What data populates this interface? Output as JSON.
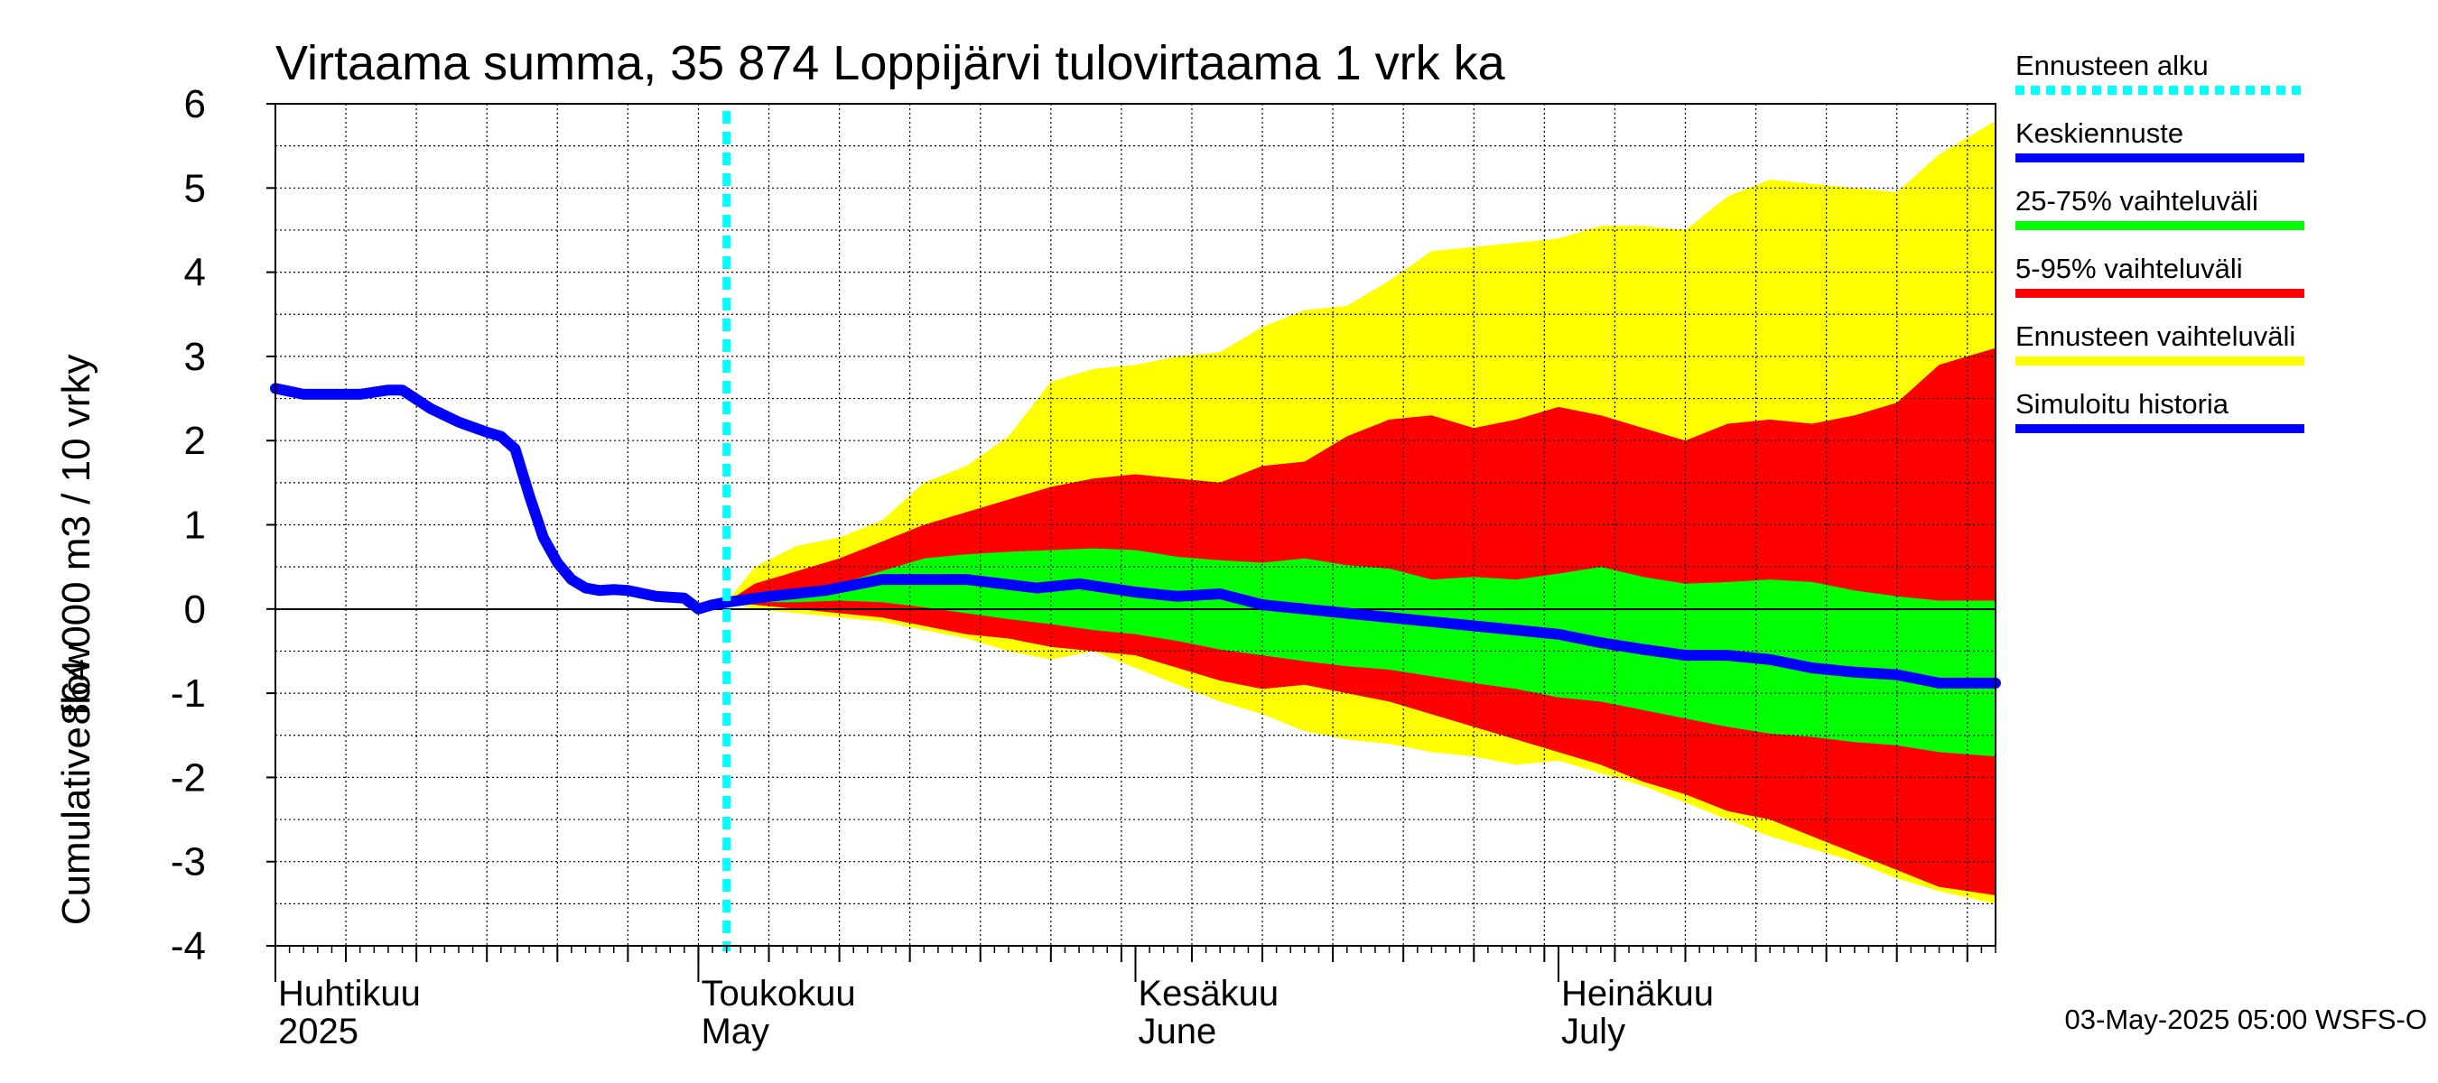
{
  "chart_data": {
    "type": "area",
    "title": "Virtaama summa, 35 874 Loppijärvi tulovirtaama 1 vrk ka",
    "ylabel_fi": "864 000 m3 / 10 vrky",
    "ylabel_en": "Cumulative flow",
    "ylim": [
      -4,
      6
    ],
    "yticks": [
      -4,
      -3,
      -2,
      -1,
      0,
      1,
      2,
      3,
      4,
      5,
      6
    ],
    "ytick_labels": [
      "-4",
      "-3",
      "-2",
      "-1",
      "0",
      "1",
      "2",
      "3",
      "4",
      "5",
      "6"
    ],
    "x_range": [
      "2025-04-01",
      "2025-08-01"
    ],
    "grid": true,
    "legend_position": "right",
    "months": [
      {
        "fi": "Huhtikuu",
        "en": "2025",
        "date": "2025-04-01"
      },
      {
        "fi": "Toukokuu",
        "en": "May",
        "date": "2025-05-01"
      },
      {
        "fi": "Kesäkuu",
        "en": "June",
        "date": "2025-06-01"
      },
      {
        "fi": "Heinäkuu",
        "en": "July",
        "date": "2025-07-01"
      }
    ],
    "forecast_start": "2025-05-03",
    "history": {
      "name": "Simuloitu historia",
      "color": "#0000ff",
      "x": [
        "2025-04-01",
        "2025-04-03",
        "2025-04-05",
        "2025-04-07",
        "2025-04-09",
        "2025-04-10",
        "2025-04-12",
        "2025-04-14",
        "2025-04-16",
        "2025-04-17",
        "2025-04-18",
        "2025-04-19",
        "2025-04-20",
        "2025-04-21",
        "2025-04-22",
        "2025-04-23",
        "2025-04-24",
        "2025-04-25",
        "2025-04-26",
        "2025-04-28",
        "2025-04-30",
        "2025-05-01",
        "2025-05-02",
        "2025-05-03"
      ],
      "y": [
        2.62,
        2.55,
        2.55,
        2.55,
        2.6,
        2.6,
        2.38,
        2.22,
        2.1,
        2.05,
        1.9,
        1.35,
        0.85,
        0.55,
        0.35,
        0.25,
        0.22,
        0.23,
        0.22,
        0.15,
        0.13,
        0.0,
        0.05,
        0.08
      ]
    },
    "median": {
      "name": "Keskiennuste",
      "color": "#0000ff",
      "x": [
        "2025-05-03",
        "2025-05-06",
        "2025-05-10",
        "2025-05-14",
        "2025-05-17",
        "2025-05-20",
        "2025-05-25",
        "2025-05-28",
        "2025-06-01",
        "2025-06-04",
        "2025-06-07",
        "2025-06-10",
        "2025-06-13",
        "2025-06-16",
        "2025-06-19",
        "2025-06-22",
        "2025-06-25",
        "2025-06-28",
        "2025-07-01",
        "2025-07-04",
        "2025-07-07",
        "2025-07-10",
        "2025-07-13",
        "2025-07-16",
        "2025-07-19",
        "2025-07-22",
        "2025-07-25",
        "2025-07-28",
        "2025-08-01"
      ],
      "y": [
        0.08,
        0.15,
        0.22,
        0.35,
        0.35,
        0.35,
        0.25,
        0.3,
        0.2,
        0.15,
        0.18,
        0.05,
        0.0,
        -0.05,
        -0.1,
        -0.15,
        -0.2,
        -0.25,
        -0.3,
        -0.4,
        -0.48,
        -0.55,
        -0.55,
        -0.6,
        -0.7,
        -0.75,
        -0.78,
        -0.88,
        -0.88
      ]
    },
    "bands": [
      {
        "name": "Ennusteen vaihteluväli",
        "color": "#ffff00",
        "x": [
          "2025-05-03",
          "2025-05-05",
          "2025-05-08",
          "2025-05-11",
          "2025-05-14",
          "2025-05-17",
          "2025-05-20",
          "2025-05-23",
          "2025-05-26",
          "2025-05-29",
          "2025-06-01",
          "2025-06-04",
          "2025-06-07",
          "2025-06-10",
          "2025-06-13",
          "2025-06-16",
          "2025-06-19",
          "2025-06-22",
          "2025-06-25",
          "2025-06-28",
          "2025-07-01",
          "2025-07-04",
          "2025-07-07",
          "2025-07-10",
          "2025-07-13",
          "2025-07-16",
          "2025-07-19",
          "2025-07-22",
          "2025-07-25",
          "2025-07-28",
          "2025-08-01"
        ],
        "upper": [
          0.08,
          0.5,
          0.75,
          0.85,
          1.05,
          1.5,
          1.7,
          2.05,
          2.7,
          2.85,
          2.9,
          3.0,
          3.05,
          3.35,
          3.55,
          3.6,
          3.9,
          4.25,
          4.3,
          4.35,
          4.4,
          4.55,
          4.55,
          4.5,
          4.9,
          5.1,
          5.05,
          5.0,
          4.95,
          5.4,
          5.8
        ],
        "lower": [
          0.08,
          0.0,
          -0.05,
          -0.1,
          -0.15,
          -0.25,
          -0.35,
          -0.5,
          -0.6,
          -0.5,
          -0.7,
          -0.9,
          -1.1,
          -1.25,
          -1.45,
          -1.55,
          -1.6,
          -1.7,
          -1.75,
          -1.85,
          -1.8,
          -1.95,
          -2.1,
          -2.3,
          -2.5,
          -2.7,
          -2.85,
          -3.0,
          -3.2,
          -3.35,
          -3.5
        ]
      },
      {
        "name": "5-95% vaihteluväli",
        "color": "#ff0000",
        "x": [
          "2025-05-03",
          "2025-05-05",
          "2025-05-08",
          "2025-05-11",
          "2025-05-14",
          "2025-05-17",
          "2025-05-20",
          "2025-05-23",
          "2025-05-26",
          "2025-05-29",
          "2025-06-01",
          "2025-06-04",
          "2025-06-07",
          "2025-06-10",
          "2025-06-13",
          "2025-06-16",
          "2025-06-19",
          "2025-06-22",
          "2025-06-25",
          "2025-06-28",
          "2025-07-01",
          "2025-07-04",
          "2025-07-07",
          "2025-07-10",
          "2025-07-13",
          "2025-07-16",
          "2025-07-19",
          "2025-07-22",
          "2025-07-25",
          "2025-07-28",
          "2025-08-01"
        ],
        "upper": [
          0.08,
          0.3,
          0.45,
          0.6,
          0.8,
          1.0,
          1.15,
          1.3,
          1.45,
          1.55,
          1.6,
          1.55,
          1.5,
          1.7,
          1.75,
          2.05,
          2.25,
          2.3,
          2.15,
          2.25,
          2.4,
          2.3,
          2.15,
          2.0,
          2.2,
          2.25,
          2.2,
          2.3,
          2.45,
          2.9,
          3.1
        ],
        "lower": [
          0.08,
          0.05,
          0.0,
          -0.05,
          -0.1,
          -0.2,
          -0.3,
          -0.35,
          -0.45,
          -0.5,
          -0.55,
          -0.7,
          -0.85,
          -0.95,
          -0.9,
          -1.0,
          -1.1,
          -1.25,
          -1.4,
          -1.55,
          -1.7,
          -1.85,
          -2.05,
          -2.2,
          -2.4,
          -2.5,
          -2.7,
          -2.9,
          -3.1,
          -3.3,
          -3.4
        ]
      },
      {
        "name": "25-75% vaihteluväli",
        "color": "#00ff00",
        "x": [
          "2025-05-03",
          "2025-05-05",
          "2025-05-08",
          "2025-05-11",
          "2025-05-14",
          "2025-05-17",
          "2025-05-20",
          "2025-05-23",
          "2025-05-26",
          "2025-05-29",
          "2025-06-01",
          "2025-06-04",
          "2025-06-07",
          "2025-06-10",
          "2025-06-13",
          "2025-06-16",
          "2025-06-19",
          "2025-06-22",
          "2025-06-25",
          "2025-06-28",
          "2025-07-01",
          "2025-07-04",
          "2025-07-07",
          "2025-07-10",
          "2025-07-13",
          "2025-07-16",
          "2025-07-19",
          "2025-07-22",
          "2025-07-25",
          "2025-07-28",
          "2025-08-01"
        ],
        "upper": [
          0.08,
          0.12,
          0.18,
          0.3,
          0.45,
          0.6,
          0.65,
          0.68,
          0.7,
          0.72,
          0.7,
          0.62,
          0.58,
          0.55,
          0.6,
          0.52,
          0.48,
          0.35,
          0.38,
          0.35,
          0.42,
          0.5,
          0.38,
          0.3,
          0.32,
          0.35,
          0.32,
          0.22,
          0.15,
          0.1,
          0.1
        ],
        "lower": [
          0.08,
          0.08,
          0.08,
          0.1,
          0.08,
          0.02,
          -0.05,
          -0.12,
          -0.18,
          -0.25,
          -0.3,
          -0.38,
          -0.48,
          -0.55,
          -0.62,
          -0.68,
          -0.72,
          -0.8,
          -0.88,
          -0.95,
          -1.05,
          -1.1,
          -1.2,
          -1.3,
          -1.4,
          -1.48,
          -1.52,
          -1.58,
          -1.62,
          -1.7,
          -1.75
        ]
      }
    ],
    "legend": [
      {
        "label": "Ennusteen alku",
        "color": "#00ffff",
        "style": "dotted"
      },
      {
        "label": "Keskiennuste",
        "color": "#0000ff",
        "style": "solid"
      },
      {
        "label": "25-75% vaihteluväli",
        "color": "#00ff00",
        "style": "solid"
      },
      {
        "label": "5-95% vaihteluväli",
        "color": "#ff0000",
        "style": "solid"
      },
      {
        "label": "Ennusteen vaihteluväli",
        "color": "#ffff00",
        "style": "solid"
      },
      {
        "label": "Simuloitu historia",
        "color": "#0000ff",
        "style": "solid"
      }
    ],
    "footer": "03-May-2025 05:00 WSFS-O"
  }
}
